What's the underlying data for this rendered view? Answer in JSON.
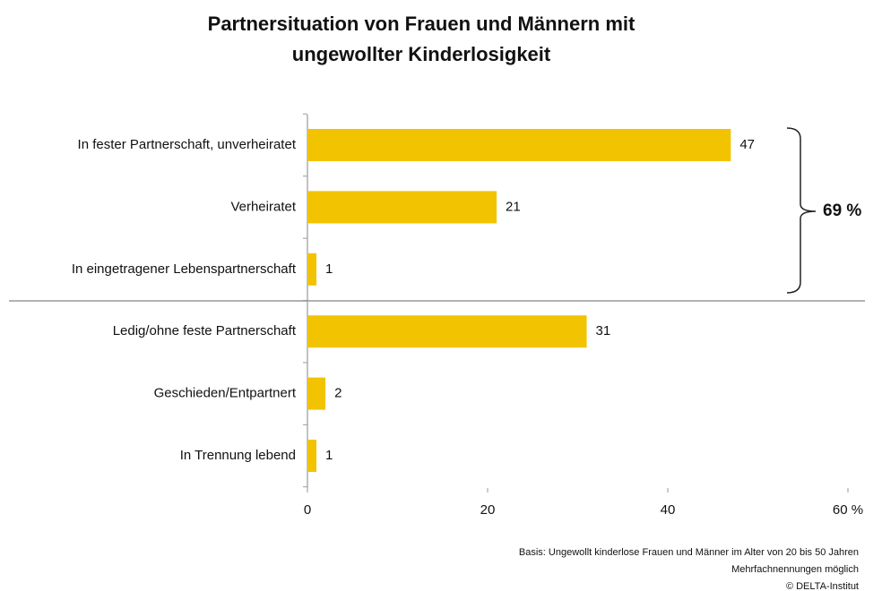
{
  "chart_data": {
    "type": "bar",
    "orientation": "horizontal",
    "title": [
      "Partnersituation von Frauen und Männern mit",
      "ungewollter Kinderlosigkeit"
    ],
    "categories": [
      "In fester Partnerschaft, unverheiratet",
      "Verheiratet",
      "In eingetragener Lebenspartnerschaft",
      "Ledig/ohne feste Partnerschaft",
      "Geschieden/Entpartnert",
      "In Trennung lebend"
    ],
    "values": [
      47,
      21,
      1,
      31,
      2,
      1
    ],
    "color": "#f2c300",
    "xlim": [
      0,
      60
    ],
    "xticks": [
      0,
      20,
      40,
      {
        "value": 60,
        "label": "60 %"
      }
    ],
    "annotation": "69 %",
    "footnotes": [
      "Basis: Ungewollt kinderlose Frauen und Männer im Alter von 20 bis 50 Jahren",
      "Mehrfachnennungen möglich",
      "©  DELTA-Institut"
    ]
  }
}
